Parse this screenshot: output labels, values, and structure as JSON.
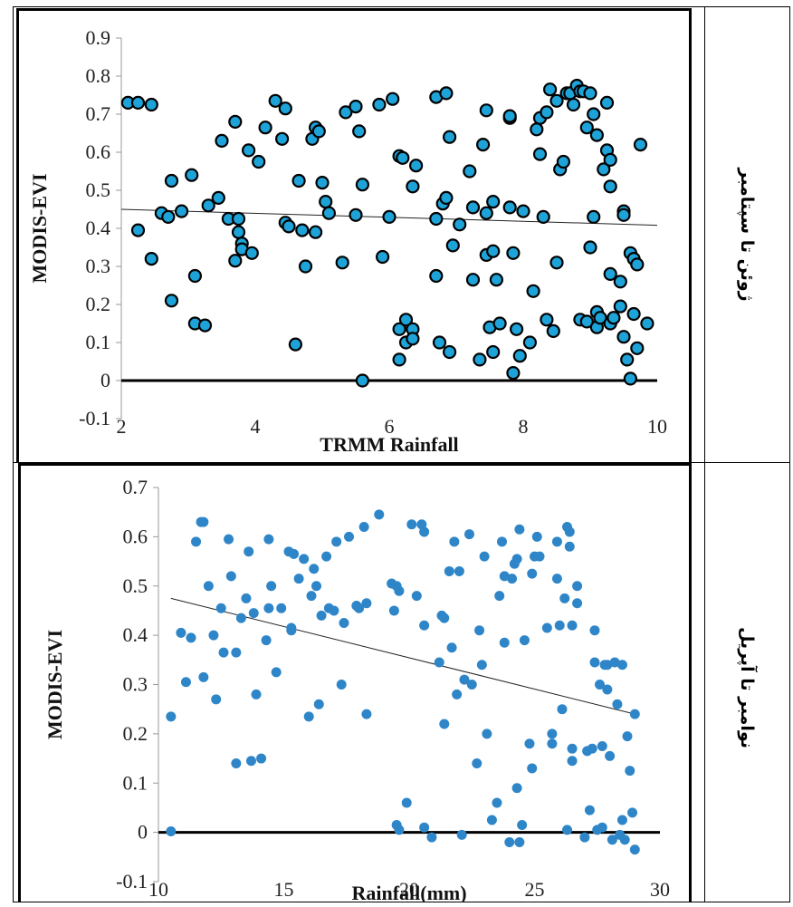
{
  "rows": [
    {
      "label": "ژوئن تا سپتامبر"
    },
    {
      "label": "نوامبر تا آپریل"
    }
  ],
  "chart_data": [
    {
      "type": "scatter",
      "title": "",
      "xlabel": "TRMM Rainfall",
      "ylabel": "MODIS-EVI",
      "xlim": [
        2,
        10
      ],
      "ylim": [
        -0.1,
        0.9
      ],
      "xticks": [
        "2",
        "4",
        "6",
        "8",
        "10"
      ],
      "yticks": [
        "-0.1",
        "0",
        "0.1",
        "0.2",
        "0.3",
        "0.4",
        "0.5",
        "0.6",
        "0.7",
        "0.8",
        "0.9"
      ],
      "marker_color": "#1ea3d8",
      "marker_edge": "#000000",
      "trendline": {
        "x": [
          2,
          10
        ],
        "y": [
          0.45,
          0.408
        ]
      },
      "points": [
        [
          2.1,
          0.73
        ],
        [
          2.25,
          0.73
        ],
        [
          2.45,
          0.725
        ],
        [
          2.25,
          0.395
        ],
        [
          2.45,
          0.32
        ],
        [
          2.6,
          0.44
        ],
        [
          2.7,
          0.43
        ],
        [
          2.75,
          0.525
        ],
        [
          2.9,
          0.445
        ],
        [
          2.75,
          0.21
        ],
        [
          3.05,
          0.54
        ],
        [
          3.1,
          0.275
        ],
        [
          3.1,
          0.15
        ],
        [
          3.25,
          0.145
        ],
        [
          3.3,
          0.46
        ],
        [
          3.45,
          0.48
        ],
        [
          3.5,
          0.63
        ],
        [
          3.6,
          0.425
        ],
        [
          3.7,
          0.68
        ],
        [
          3.75,
          0.425
        ],
        [
          3.75,
          0.39
        ],
        [
          3.8,
          0.36
        ],
        [
          3.8,
          0.345
        ],
        [
          3.7,
          0.315
        ],
        [
          3.9,
          0.605
        ],
        [
          3.95,
          0.335
        ],
        [
          4.05,
          0.575
        ],
        [
          4.15,
          0.665
        ],
        [
          4.3,
          0.735
        ],
        [
          4.4,
          0.635
        ],
        [
          4.45,
          0.715
        ],
        [
          4.45,
          0.415
        ],
        [
          4.5,
          0.405
        ],
        [
          4.6,
          0.095
        ],
        [
          4.65,
          0.525
        ],
        [
          4.7,
          0.395
        ],
        [
          4.75,
          0.3
        ],
        [
          4.85,
          0.635
        ],
        [
          4.9,
          0.39
        ],
        [
          4.9,
          0.665
        ],
        [
          4.95,
          0.655
        ],
        [
          5,
          0.52
        ],
        [
          5.05,
          0.47
        ],
        [
          5.1,
          0.44
        ],
        [
          5.3,
          0.31
        ],
        [
          5.35,
          0.705
        ],
        [
          5.5,
          0.72
        ],
        [
          5.5,
          0.435
        ],
        [
          5.55,
          0.655
        ],
        [
          5.6,
          0.515
        ],
        [
          5.6,
          0
        ],
        [
          5.85,
          0.725
        ],
        [
          5.9,
          0.325
        ],
        [
          6,
          0.43
        ],
        [
          6.05,
          0.74
        ],
        [
          6.15,
          0.135
        ],
        [
          6.15,
          0.055
        ],
        [
          6.15,
          0.59
        ],
        [
          6.2,
          0.585
        ],
        [
          6.25,
          0.16
        ],
        [
          6.25,
          0.1
        ],
        [
          6.35,
          0.135
        ],
        [
          6.35,
          0.11
        ],
        [
          6.35,
          0.51
        ],
        [
          6.4,
          0.565
        ],
        [
          6.7,
          0.745
        ],
        [
          6.7,
          0.425
        ],
        [
          6.7,
          0.275
        ],
        [
          6.75,
          0.1
        ],
        [
          6.8,
          0.465
        ],
        [
          6.85,
          0.48
        ],
        [
          6.85,
          0.755
        ],
        [
          6.9,
          0.075
        ],
        [
          6.9,
          0.64
        ],
        [
          6.95,
          0.355
        ],
        [
          7.05,
          0.41
        ],
        [
          7.2,
          0.55
        ],
        [
          7.25,
          0.455
        ],
        [
          7.25,
          0.265
        ],
        [
          7.35,
          0.055
        ],
        [
          7.4,
          0.62
        ],
        [
          7.45,
          0.44
        ],
        [
          7.45,
          0.71
        ],
        [
          7.45,
          0.33
        ],
        [
          7.5,
          0.14
        ],
        [
          7.55,
          0.075
        ],
        [
          7.55,
          0.34
        ],
        [
          7.55,
          0.47
        ],
        [
          7.6,
          0.265
        ],
        [
          7.65,
          0.15
        ],
        [
          7.8,
          0.69
        ],
        [
          7.8,
          0.695
        ],
        [
          7.8,
          0.455
        ],
        [
          7.85,
          0.335
        ],
        [
          7.85,
          0.02
        ],
        [
          7.9,
          0.135
        ],
        [
          7.95,
          0.065
        ],
        [
          8,
          0.445
        ],
        [
          8.1,
          0.1
        ],
        [
          8.15,
          0.235
        ],
        [
          8.2,
          0.66
        ],
        [
          8.25,
          0.69
        ],
        [
          8.25,
          0.595
        ],
        [
          8.3,
          0.43
        ],
        [
          8.35,
          0.16
        ],
        [
          8.35,
          0.705
        ],
        [
          8.4,
          0.765
        ],
        [
          8.45,
          0.13
        ],
        [
          8.5,
          0.31
        ],
        [
          8.5,
          0.735
        ],
        [
          8.55,
          0.555
        ],
        [
          8.6,
          0.575
        ],
        [
          8.65,
          0.755
        ],
        [
          8.7,
          0.755
        ],
        [
          8.75,
          0.725
        ],
        [
          8.8,
          0.775
        ],
        [
          8.85,
          0.76
        ],
        [
          8.85,
          0.16
        ],
        [
          8.9,
          0.76
        ],
        [
          8.95,
          0.665
        ],
        [
          8.95,
          0.155
        ],
        [
          9,
          0.35
        ],
        [
          9,
          0.755
        ],
        [
          9.05,
          0.7
        ],
        [
          9.05,
          0.43
        ],
        [
          9.1,
          0.645
        ],
        [
          9.1,
          0.14
        ],
        [
          9.1,
          0.18
        ],
        [
          9.15,
          0.165
        ],
        [
          9.2,
          0.555
        ],
        [
          9.25,
          0.73
        ],
        [
          9.25,
          0.605
        ],
        [
          9.3,
          0.58
        ],
        [
          9.3,
          0.51
        ],
        [
          9.3,
          0.28
        ],
        [
          9.3,
          0.15
        ],
        [
          9.35,
          0.165
        ],
        [
          9.45,
          0.26
        ],
        [
          9.45,
          0.195
        ],
        [
          9.5,
          0.445
        ],
        [
          9.5,
          0.435
        ],
        [
          9.5,
          0.115
        ],
        [
          9.55,
          0.055
        ],
        [
          9.6,
          0.005
        ],
        [
          9.6,
          0.335
        ],
        [
          9.65,
          0.175
        ],
        [
          9.65,
          0.32
        ],
        [
          9.7,
          0.305
        ],
        [
          9.7,
          0.085
        ],
        [
          9.85,
          0.15
        ],
        [
          9.75,
          0.62
        ]
      ]
    },
    {
      "type": "scatter",
      "title": "",
      "xlabel": "Rainfall(mm)",
      "ylabel": "MODIS-EVI",
      "xlim": [
        10,
        30
      ],
      "ylim": [
        -0.1,
        0.7
      ],
      "xticks": [
        "10",
        "15",
        "20",
        "25",
        "30"
      ],
      "yticks": [
        "-0.1",
        "0",
        "0.1",
        "0.2",
        "0.3",
        "0.4",
        "0.5",
        "0.6",
        "0.7"
      ],
      "marker_color": "#2e86c8",
      "marker_edge": "#2e86c8",
      "trendline": {
        "x": [
          10.5,
          29
        ],
        "y": [
          0.475,
          0.24
        ]
      },
      "points": [
        [
          10.5,
          0.235
        ],
        [
          10.5,
          0.002
        ],
        [
          10.9,
          0.405
        ],
        [
          11.1,
          0.305
        ],
        [
          11.3,
          0.395
        ],
        [
          11.5,
          0.59
        ],
        [
          11.7,
          0.63
        ],
        [
          11.8,
          0.63
        ],
        [
          11.8,
          0.315
        ],
        [
          12,
          0.5
        ],
        [
          12.2,
          0.4
        ],
        [
          12.3,
          0.27
        ],
        [
          12.5,
          0.455
        ],
        [
          12.6,
          0.365
        ],
        [
          12.8,
          0.595
        ],
        [
          12.9,
          0.52
        ],
        [
          13.1,
          0.365
        ],
        [
          13.1,
          0.14
        ],
        [
          13.3,
          0.435
        ],
        [
          13.5,
          0.475
        ],
        [
          13.6,
          0.57
        ],
        [
          13.7,
          0.145
        ],
        [
          13.8,
          0.445
        ],
        [
          13.9,
          0.28
        ],
        [
          14.1,
          0.15
        ],
        [
          14.3,
          0.39
        ],
        [
          14.4,
          0.455
        ],
        [
          14.4,
          0.595
        ],
        [
          14.5,
          0.5
        ],
        [
          14.7,
          0.325
        ],
        [
          14.9,
          0.455
        ],
        [
          15.2,
          0.57
        ],
        [
          15.3,
          0.415
        ],
        [
          15.3,
          0.41
        ],
        [
          15.4,
          0.565
        ],
        [
          15.6,
          0.515
        ],
        [
          15.8,
          0.555
        ],
        [
          16,
          0.235
        ],
        [
          16.1,
          0.48
        ],
        [
          16.2,
          0.535
        ],
        [
          16.3,
          0.5
        ],
        [
          16.4,
          0.26
        ],
        [
          16.5,
          0.44
        ],
        [
          16.7,
          0.56
        ],
        [
          16.8,
          0.455
        ],
        [
          17,
          0.45
        ],
        [
          17.1,
          0.59
        ],
        [
          17.3,
          0.3
        ],
        [
          17.4,
          0.425
        ],
        [
          17.6,
          0.6
        ],
        [
          17.9,
          0.46
        ],
        [
          18,
          0.455
        ],
        [
          18.2,
          0.62
        ],
        [
          18.3,
          0.465
        ],
        [
          18.3,
          0.24
        ],
        [
          18.8,
          0.645
        ],
        [
          19.3,
          0.505
        ],
        [
          19.4,
          0.45
        ],
        [
          19.5,
          0.5
        ],
        [
          19.6,
          0.49
        ],
        [
          19.5,
          0.015
        ],
        [
          19.6,
          0.005
        ],
        [
          19.9,
          0.06
        ],
        [
          20.1,
          0.625
        ],
        [
          20.3,
          0.48
        ],
        [
          20.5,
          0.625
        ],
        [
          20.6,
          0.61
        ],
        [
          20.6,
          0.42
        ],
        [
          20.6,
          0.01
        ],
        [
          20.9,
          -0.01
        ],
        [
          21.2,
          0.345
        ],
        [
          21.3,
          0.44
        ],
        [
          21.4,
          0.435
        ],
        [
          21.4,
          0.22
        ],
        [
          21.6,
          0.53
        ],
        [
          21.7,
          0.375
        ],
        [
          21.8,
          0.59
        ],
        [
          21.9,
          0.28
        ],
        [
          22,
          0.53
        ],
        [
          22.1,
          -0.005
        ],
        [
          22.2,
          0.31
        ],
        [
          22.4,
          0.605
        ],
        [
          22.5,
          0.3
        ],
        [
          22.7,
          0.14
        ],
        [
          22.8,
          0.41
        ],
        [
          22.9,
          0.34
        ],
        [
          23,
          0.56
        ],
        [
          23.1,
          0.2
        ],
        [
          23.3,
          0.025
        ],
        [
          23.5,
          0.06
        ],
        [
          23.6,
          0.48
        ],
        [
          23.7,
          0.59
        ],
        [
          23.8,
          0.52
        ],
        [
          23.8,
          0.385
        ],
        [
          24,
          -0.02
        ],
        [
          24.1,
          0.515
        ],
        [
          24.2,
          0.545
        ],
        [
          24.3,
          0.555
        ],
        [
          24.3,
          0.09
        ],
        [
          24.4,
          -0.02
        ],
        [
          24.4,
          0.615
        ],
        [
          24.5,
          0.015
        ],
        [
          24.6,
          0.39
        ],
        [
          24.8,
          0.18
        ],
        [
          24.9,
          0.13
        ],
        [
          24.9,
          0.525
        ],
        [
          25,
          0.56
        ],
        [
          25.1,
          0.6
        ],
        [
          25.2,
          0.56
        ],
        [
          25.5,
          0.415
        ],
        [
          25.7,
          0.2
        ],
        [
          25.7,
          0.18
        ],
        [
          25.9,
          0.59
        ],
        [
          25.9,
          0.515
        ],
        [
          26,
          0.42
        ],
        [
          26.1,
          0.25
        ],
        [
          26.2,
          0.475
        ],
        [
          26.3,
          0.005
        ],
        [
          26.3,
          0.62
        ],
        [
          26.4,
          0.61
        ],
        [
          26.4,
          0.58
        ],
        [
          26.5,
          0.17
        ],
        [
          26.5,
          0.145
        ],
        [
          26.5,
          0.42
        ],
        [
          26.7,
          0.5
        ],
        [
          26.7,
          0.465
        ],
        [
          27,
          -0.01
        ],
        [
          27.1,
          0.165
        ],
        [
          27.2,
          0.045
        ],
        [
          27.3,
          0.17
        ],
        [
          27.4,
          0.41
        ],
        [
          27.4,
          0.345
        ],
        [
          27.5,
          0.005
        ],
        [
          27.6,
          0.3
        ],
        [
          27.7,
          0.175
        ],
        [
          27.7,
          0.01
        ],
        [
          27.8,
          0.34
        ],
        [
          27.9,
          0.34
        ],
        [
          27.9,
          0.29
        ],
        [
          28,
          0.155
        ],
        [
          28.1,
          -0.015
        ],
        [
          28.2,
          0.345
        ],
        [
          28.3,
          0.26
        ],
        [
          28.4,
          -0.005
        ],
        [
          28.5,
          0.34
        ],
        [
          28.6,
          -0.015
        ],
        [
          28.7,
          0.195
        ],
        [
          28.8,
          0.125
        ],
        [
          28.9,
          0.04
        ],
        [
          29,
          0.24
        ],
        [
          29,
          -0.035
        ],
        [
          28.5,
          0.025
        ]
      ]
    }
  ]
}
